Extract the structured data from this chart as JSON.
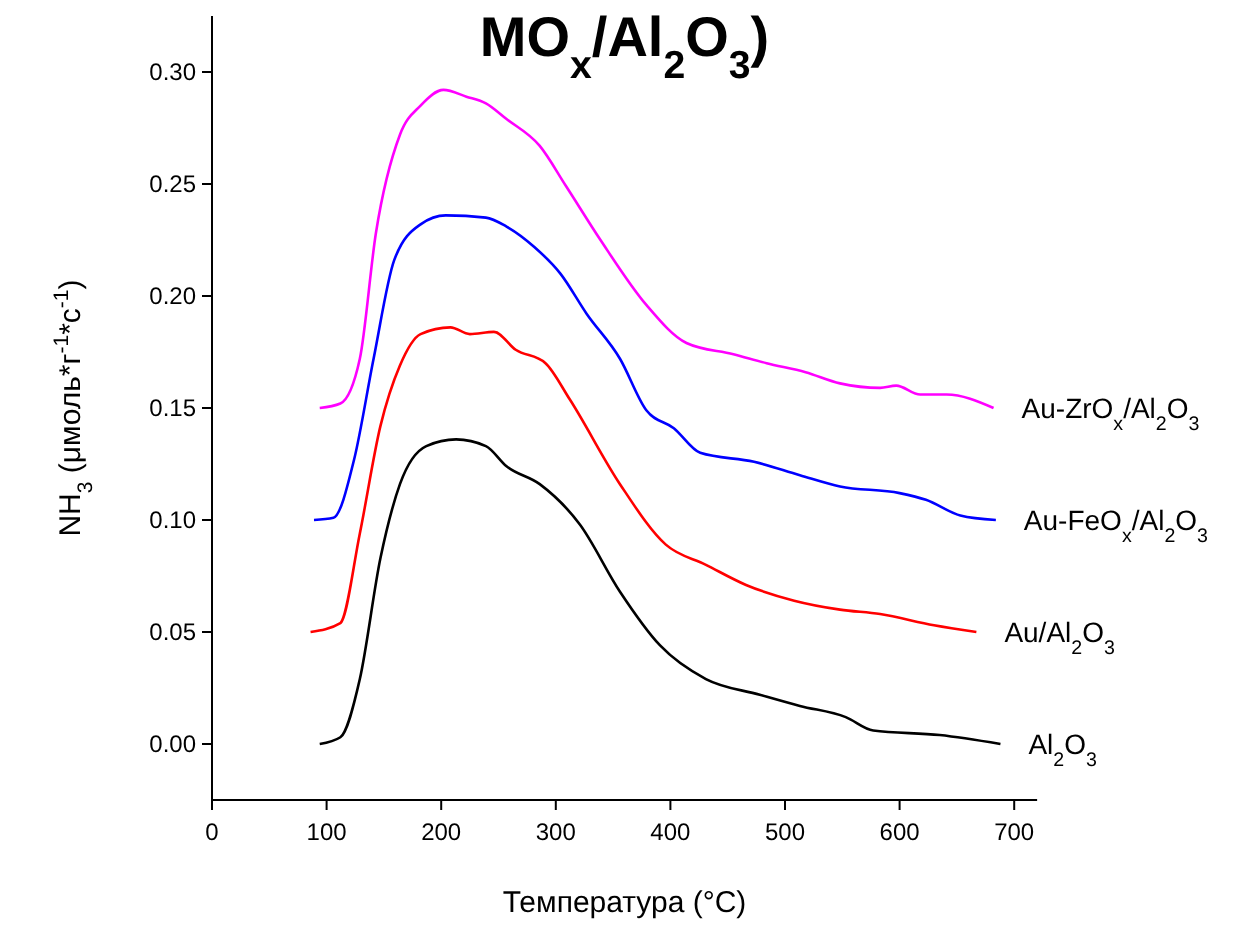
{
  "chart_data": {
    "type": "line",
    "title": "MO$_{x}$/Al$_{2}$O$_{3}$)",
    "xlabel": "Температура (°C)",
    "ylabel": "NH$_{3}$ (μмоль*г$^{-1}$*с$^{-1}$)",
    "xlim": [
      0,
      720
    ],
    "ylim": [
      -0.025,
      0.325
    ],
    "xticks": [
      0,
      100,
      200,
      300,
      400,
      500,
      600,
      700
    ],
    "yticks": [
      {
        "value": 0,
        "label": "0.00"
      },
      {
        "value": 0.05,
        "label": "0.05"
      },
      {
        "value": 0.1,
        "label": "0.10"
      },
      {
        "value": 0.15,
        "label": "0.15"
      },
      {
        "value": 0.2,
        "label": "0.20"
      },
      {
        "value": 0.25,
        "label": "0.25"
      },
      {
        "value": 0.3,
        "label": "0.30"
      }
    ],
    "grid": false,
    "line_style": "solid",
    "marker": "none",
    "series": [
      {
        "name": "Al$_{2}$O$_{3}$",
        "color": "#000000",
        "x": [
          94,
          112,
          129,
          147,
          164,
          187,
          213,
          239,
          257,
          286,
          321,
          356,
          391,
          431,
          478,
          513,
          553,
          577,
          635,
          688
        ],
        "values": [
          0,
          0.003,
          0.029,
          0.083,
          0.116,
          0.133,
          0.136,
          0.133,
          0.124,
          0.116,
          0.098,
          0.068,
          0.044,
          0.029,
          0.022,
          0.017,
          0.012,
          0.006,
          0.004,
          0
        ]
      },
      {
        "name": "Au/Al$_{2}$O$_{3}$",
        "color": "#ff0000",
        "x": [
          86,
          112,
          129,
          147,
          164,
          182,
          208,
          225,
          246,
          265,
          291,
          312,
          356,
          396,
          431,
          466,
          508,
          548,
          583,
          630,
          667
        ],
        "values": [
          0.05,
          0.054,
          0.094,
          0.142,
          0.169,
          0.183,
          0.186,
          0.183,
          0.184,
          0.176,
          0.17,
          0.154,
          0.116,
          0.089,
          0.08,
          0.071,
          0.064,
          0.06,
          0.058,
          0.053,
          0.05
        ]
      },
      {
        "name": "Au-FeO$_{x}$/Al$_{2}$O$_{3}$",
        "color": "#0000ff",
        "x": [
          89,
          106,
          124,
          141,
          159,
          182,
          204,
          239,
          257,
          281,
          304,
          327,
          356,
          379,
          403,
          426,
          473,
          513,
          548,
          600,
          623,
          653,
          684
        ],
        "values": [
          0.1,
          0.101,
          0.127,
          0.172,
          0.216,
          0.232,
          0.236,
          0.235,
          0.231,
          0.222,
          0.21,
          0.192,
          0.172,
          0.149,
          0.141,
          0.13,
          0.126,
          0.12,
          0.115,
          0.112,
          0.109,
          0.102,
          0.1
        ]
      },
      {
        "name": "Au-ZrO$_{x}$/Al$_{2}$O$_{3}$",
        "color": "#ff00ff",
        "x": [
          94,
          112,
          129,
          143,
          164,
          182,
          202,
          222,
          239,
          257,
          286,
          309,
          339,
          379,
          414,
          455,
          484,
          518,
          548,
          583,
          597,
          618,
          641,
          682
        ],
        "values": [
          0.15,
          0.152,
          0.172,
          0.228,
          0.272,
          0.285,
          0.292,
          0.289,
          0.286,
          0.279,
          0.267,
          0.249,
          0.225,
          0.196,
          0.179,
          0.174,
          0.17,
          0.166,
          0.161,
          0.159,
          0.16,
          0.156,
          0.156,
          0.15
        ]
      }
    ]
  }
}
